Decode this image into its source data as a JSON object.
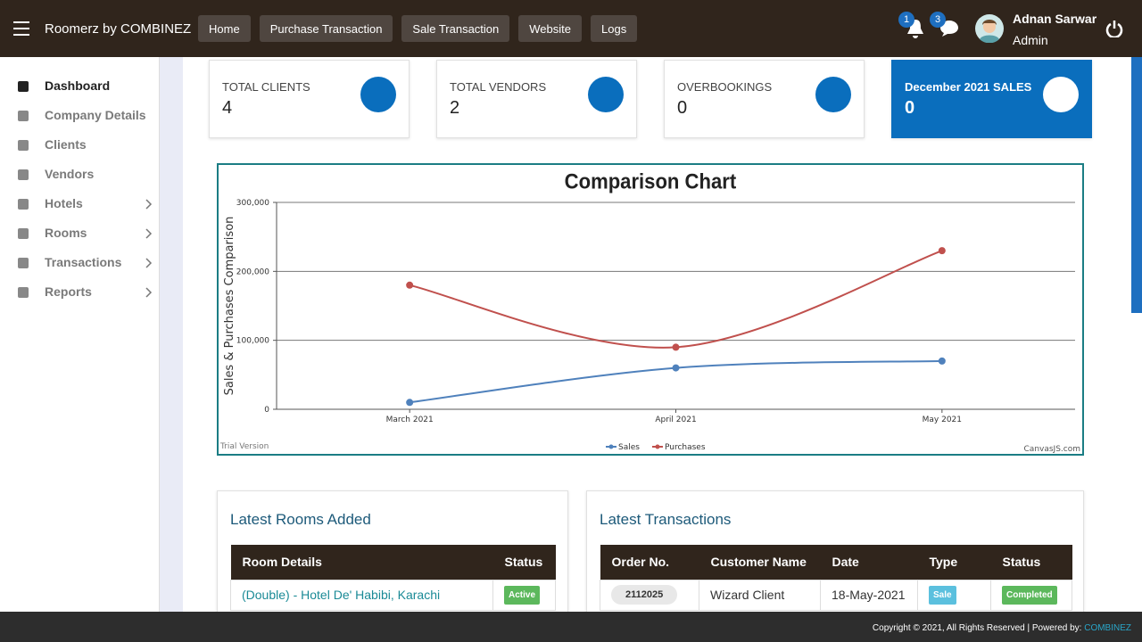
{
  "header": {
    "brand": "Roomerz by COMBINEZ",
    "nav": [
      "Home",
      "Purchase Transaction",
      "Sale Transaction",
      "Website",
      "Logs"
    ],
    "notifications": "1",
    "messages": "3",
    "user_name": "Adnan Sarwar",
    "user_role": "Admin"
  },
  "sidebar": [
    "Dashboard",
    "Company Details",
    "Clients",
    "Vendors",
    "Hotels",
    "Rooms",
    "Transactions",
    "Reports"
  ],
  "cards": [
    {
      "label": "TOTAL CLIENTS",
      "value": "4"
    },
    {
      "label": "TOTAL VENDORS",
      "value": "2"
    },
    {
      "label": "OVERBOOKINGS",
      "value": "0"
    },
    {
      "label": "December 2021 SALES",
      "value": "0"
    }
  ],
  "chart_data": {
    "type": "line",
    "title": "Comparison Chart",
    "y_label": "Sales & Purchases Comparison",
    "categories": [
      "March 2021",
      "April 2021",
      "May 2021"
    ],
    "series": [
      {
        "name": "Sales",
        "color": "#4f81bc",
        "values": [
          10000,
          60000,
          70000
        ]
      },
      {
        "name": "Purchases",
        "color": "#c0504d",
        "values": [
          180000,
          90000,
          230000
        ]
      }
    ],
    "ylim": [
      0,
      300000
    ],
    "yticks": [
      0,
      {
        "value": 100000,
        "label": "100,000"
      },
      {
        "value": 200000,
        "label": "200,000"
      },
      {
        "value": 300000,
        "label": "300,000"
      }
    ],
    "grid": true,
    "legend": "bottom",
    "watermark_left": "Trial Version",
    "watermark_right": "CanvasJS.com"
  },
  "rooms": {
    "title": "Latest Rooms Added",
    "headers": [
      "Room Details",
      "Status"
    ],
    "rows": [
      [
        "(Double) - Hotel De' Habibi, Karachi",
        "Active"
      ]
    ]
  },
  "transactions": {
    "title": "Latest Transactions",
    "headers": [
      "Order No.",
      "Customer Name",
      "Date",
      "Type",
      "Status"
    ],
    "rows": [
      [
        "2112025",
        "Wizard Client",
        "18-May-2021",
        "Sale",
        "Completed"
      ]
    ]
  },
  "footer": {
    "text": "Copyright © 2021, All Rights Reserved | Powered by:",
    "link": "COMBINEZ"
  }
}
